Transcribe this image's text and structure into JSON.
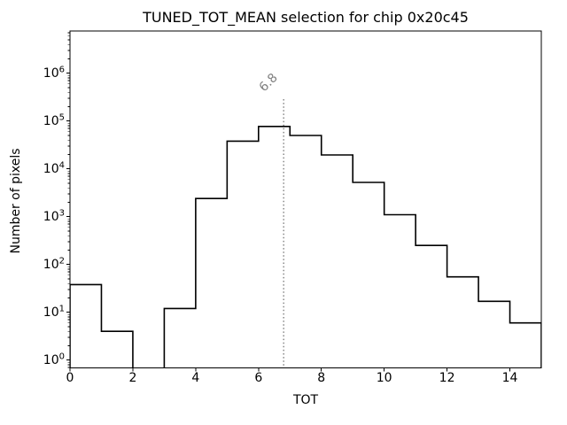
{
  "title": "TUNED_TOT_MEAN selection for chip 0x20c45",
  "axes": {
    "xlabel": "TOT",
    "ylabel": "Number of pixels",
    "x_ticks": [
      0,
      2,
      4,
      6,
      8,
      10,
      12,
      14
    ],
    "y_tick_exponents": [
      0,
      1,
      2,
      3,
      4,
      5,
      6
    ]
  },
  "annotation": {
    "label": "6.8",
    "x": 6.8
  },
  "colors": {
    "background": "#ffffff",
    "histogram_line": "#000000",
    "threshold_line": "#7f7f7f",
    "threshold_text": "#7f7f7f",
    "axis": "#000000",
    "text": "#000000"
  },
  "chart_data": {
    "type": "bar",
    "subtype": "step-histogram",
    "title": "TUNED_TOT_MEAN selection for chip 0x20c45",
    "xlabel": "TOT",
    "ylabel": "Number of pixels",
    "yscale": "log",
    "xlim": [
      0,
      15
    ],
    "ylim": [
      0.69,
      7600000
    ],
    "grid": false,
    "legend": "none",
    "bin_edges": [
      0,
      1,
      2,
      3,
      4,
      5,
      6,
      7,
      8,
      9,
      10,
      11,
      12,
      13,
      14,
      15
    ],
    "counts": [
      38,
      4,
      0,
      12,
      2400,
      38000,
      77000,
      50000,
      19500,
      5200,
      1100,
      250,
      55,
      17,
      6
    ],
    "vline": {
      "x": 6.8,
      "label": "6.8",
      "style": "dotted",
      "color": "#7f7f7f"
    }
  }
}
